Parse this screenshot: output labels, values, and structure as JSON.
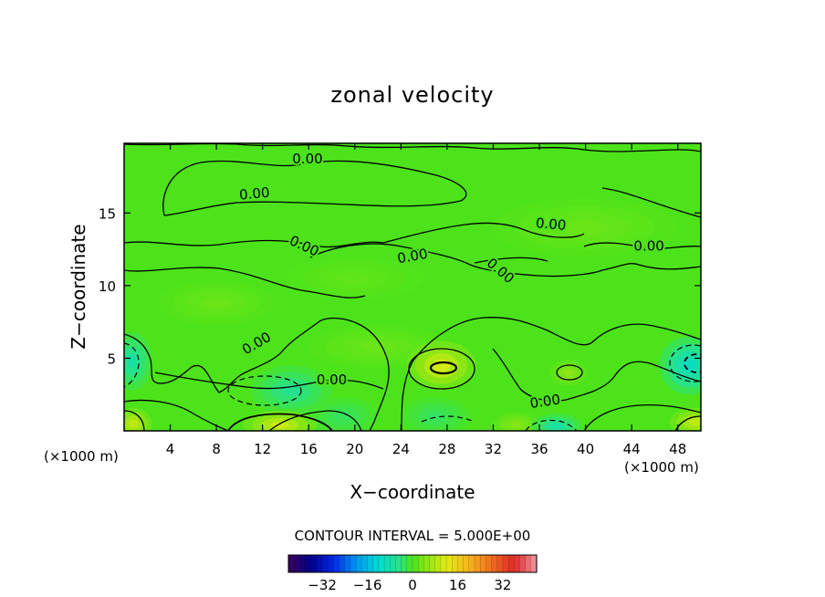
{
  "chart_data": {
    "type": "heatmap",
    "title": "zonal velocity",
    "xlabel": "X−coordinate",
    "ylabel": "Z−coordinate",
    "x_unit_left": "(×1000 m)",
    "x_unit_right": "(×1000 m)",
    "xlim": [
      0,
      50
    ],
    "ylim": [
      0,
      19.8
    ],
    "x_ticks": [
      4,
      8,
      12,
      16,
      20,
      24,
      28,
      32,
      36,
      40,
      44,
      48
    ],
    "y_ticks": [
      5,
      10,
      15
    ],
    "contour_interval_text": "CONTOUR INTERVAL = 5.000E+00",
    "contour_labels": [
      {
        "text": "0.00",
        "x": 15.9,
        "y": 18.7,
        "angle": 0
      },
      {
        "text": "0.00",
        "x": 11.3,
        "y": 16.3,
        "angle": -5
      },
      {
        "text": "0.00",
        "x": 37.0,
        "y": 14.2,
        "angle": 5
      },
      {
        "text": "0.00",
        "x": 45.5,
        "y": 12.7,
        "angle": 0
      },
      {
        "text": "0.00",
        "x": 15.6,
        "y": 12.7,
        "angle": 25
      },
      {
        "text": "0.00",
        "x": 25.0,
        "y": 12.0,
        "angle": -10
      },
      {
        "text": "0.00",
        "x": 32.6,
        "y": 11.0,
        "angle": 40
      },
      {
        "text": "0.00",
        "x": 11.5,
        "y": 6.0,
        "angle": -30
      },
      {
        "text": "0.00",
        "x": 18.0,
        "y": 3.5,
        "angle": 0
      },
      {
        "text": "0.00",
        "x": 36.5,
        "y": 2.0,
        "angle": -8
      }
    ],
    "colorbar": {
      "range": [
        -44,
        44
      ],
      "tick_labels": [
        "−32",
        "−16",
        "0",
        "16",
        "32"
      ],
      "tick_values": [
        -32,
        -16,
        0,
        16,
        32
      ]
    },
    "anomalies": [
      {
        "x": 27.5,
        "y": 4.5,
        "value": 14,
        "rx": 3.0,
        "ry": 1.7
      },
      {
        "x": 13.5,
        "y": 0.4,
        "value": 13,
        "rx": 3.2,
        "ry": 1.0
      },
      {
        "x": 0.8,
        "y": 0.5,
        "value": 12,
        "rx": 1.6,
        "ry": 1.1
      },
      {
        "x": 49.5,
        "y": 0.6,
        "value": 12,
        "rx": 2.2,
        "ry": 1.0
      },
      {
        "x": 34.0,
        "y": 0.4,
        "value": 6,
        "rx": 2.0,
        "ry": 0.9
      },
      {
        "x": 38.5,
        "y": 4.0,
        "value": 7,
        "rx": 1.6,
        "ry": 0.9
      },
      {
        "x": 49.0,
        "y": 4.5,
        "value": -13,
        "rx": 2.6,
        "ry": 2.0
      },
      {
        "x": 0.7,
        "y": 4.8,
        "value": -9,
        "rx": 1.7,
        "ry": 2.0
      },
      {
        "x": 14.5,
        "y": 2.8,
        "value": -7,
        "rx": 3.5,
        "ry": 1.7
      },
      {
        "x": 37.5,
        "y": 0.3,
        "value": -9,
        "rx": 2.2,
        "ry": 0.9
      },
      {
        "x": 19.0,
        "y": 1.0,
        "value": -4,
        "rx": 3.0,
        "ry": 1.3
      },
      {
        "x": 27.0,
        "y": 1.0,
        "value": -4,
        "rx": 3.0,
        "ry": 1.3
      },
      {
        "x": 22.0,
        "y": 5.8,
        "value": 3,
        "rx": 6.0,
        "ry": 1.5
      },
      {
        "x": 8.0,
        "y": 8.8,
        "value": 3,
        "rx": 5.0,
        "ry": 1.5
      },
      {
        "x": 40.0,
        "y": 14.0,
        "value": 3,
        "rx": 8.0,
        "ry": 2.0
      },
      {
        "x": 20.0,
        "y": 10.5,
        "value": 2,
        "rx": 6.0,
        "ry": 1.5
      }
    ],
    "grid": false
  }
}
